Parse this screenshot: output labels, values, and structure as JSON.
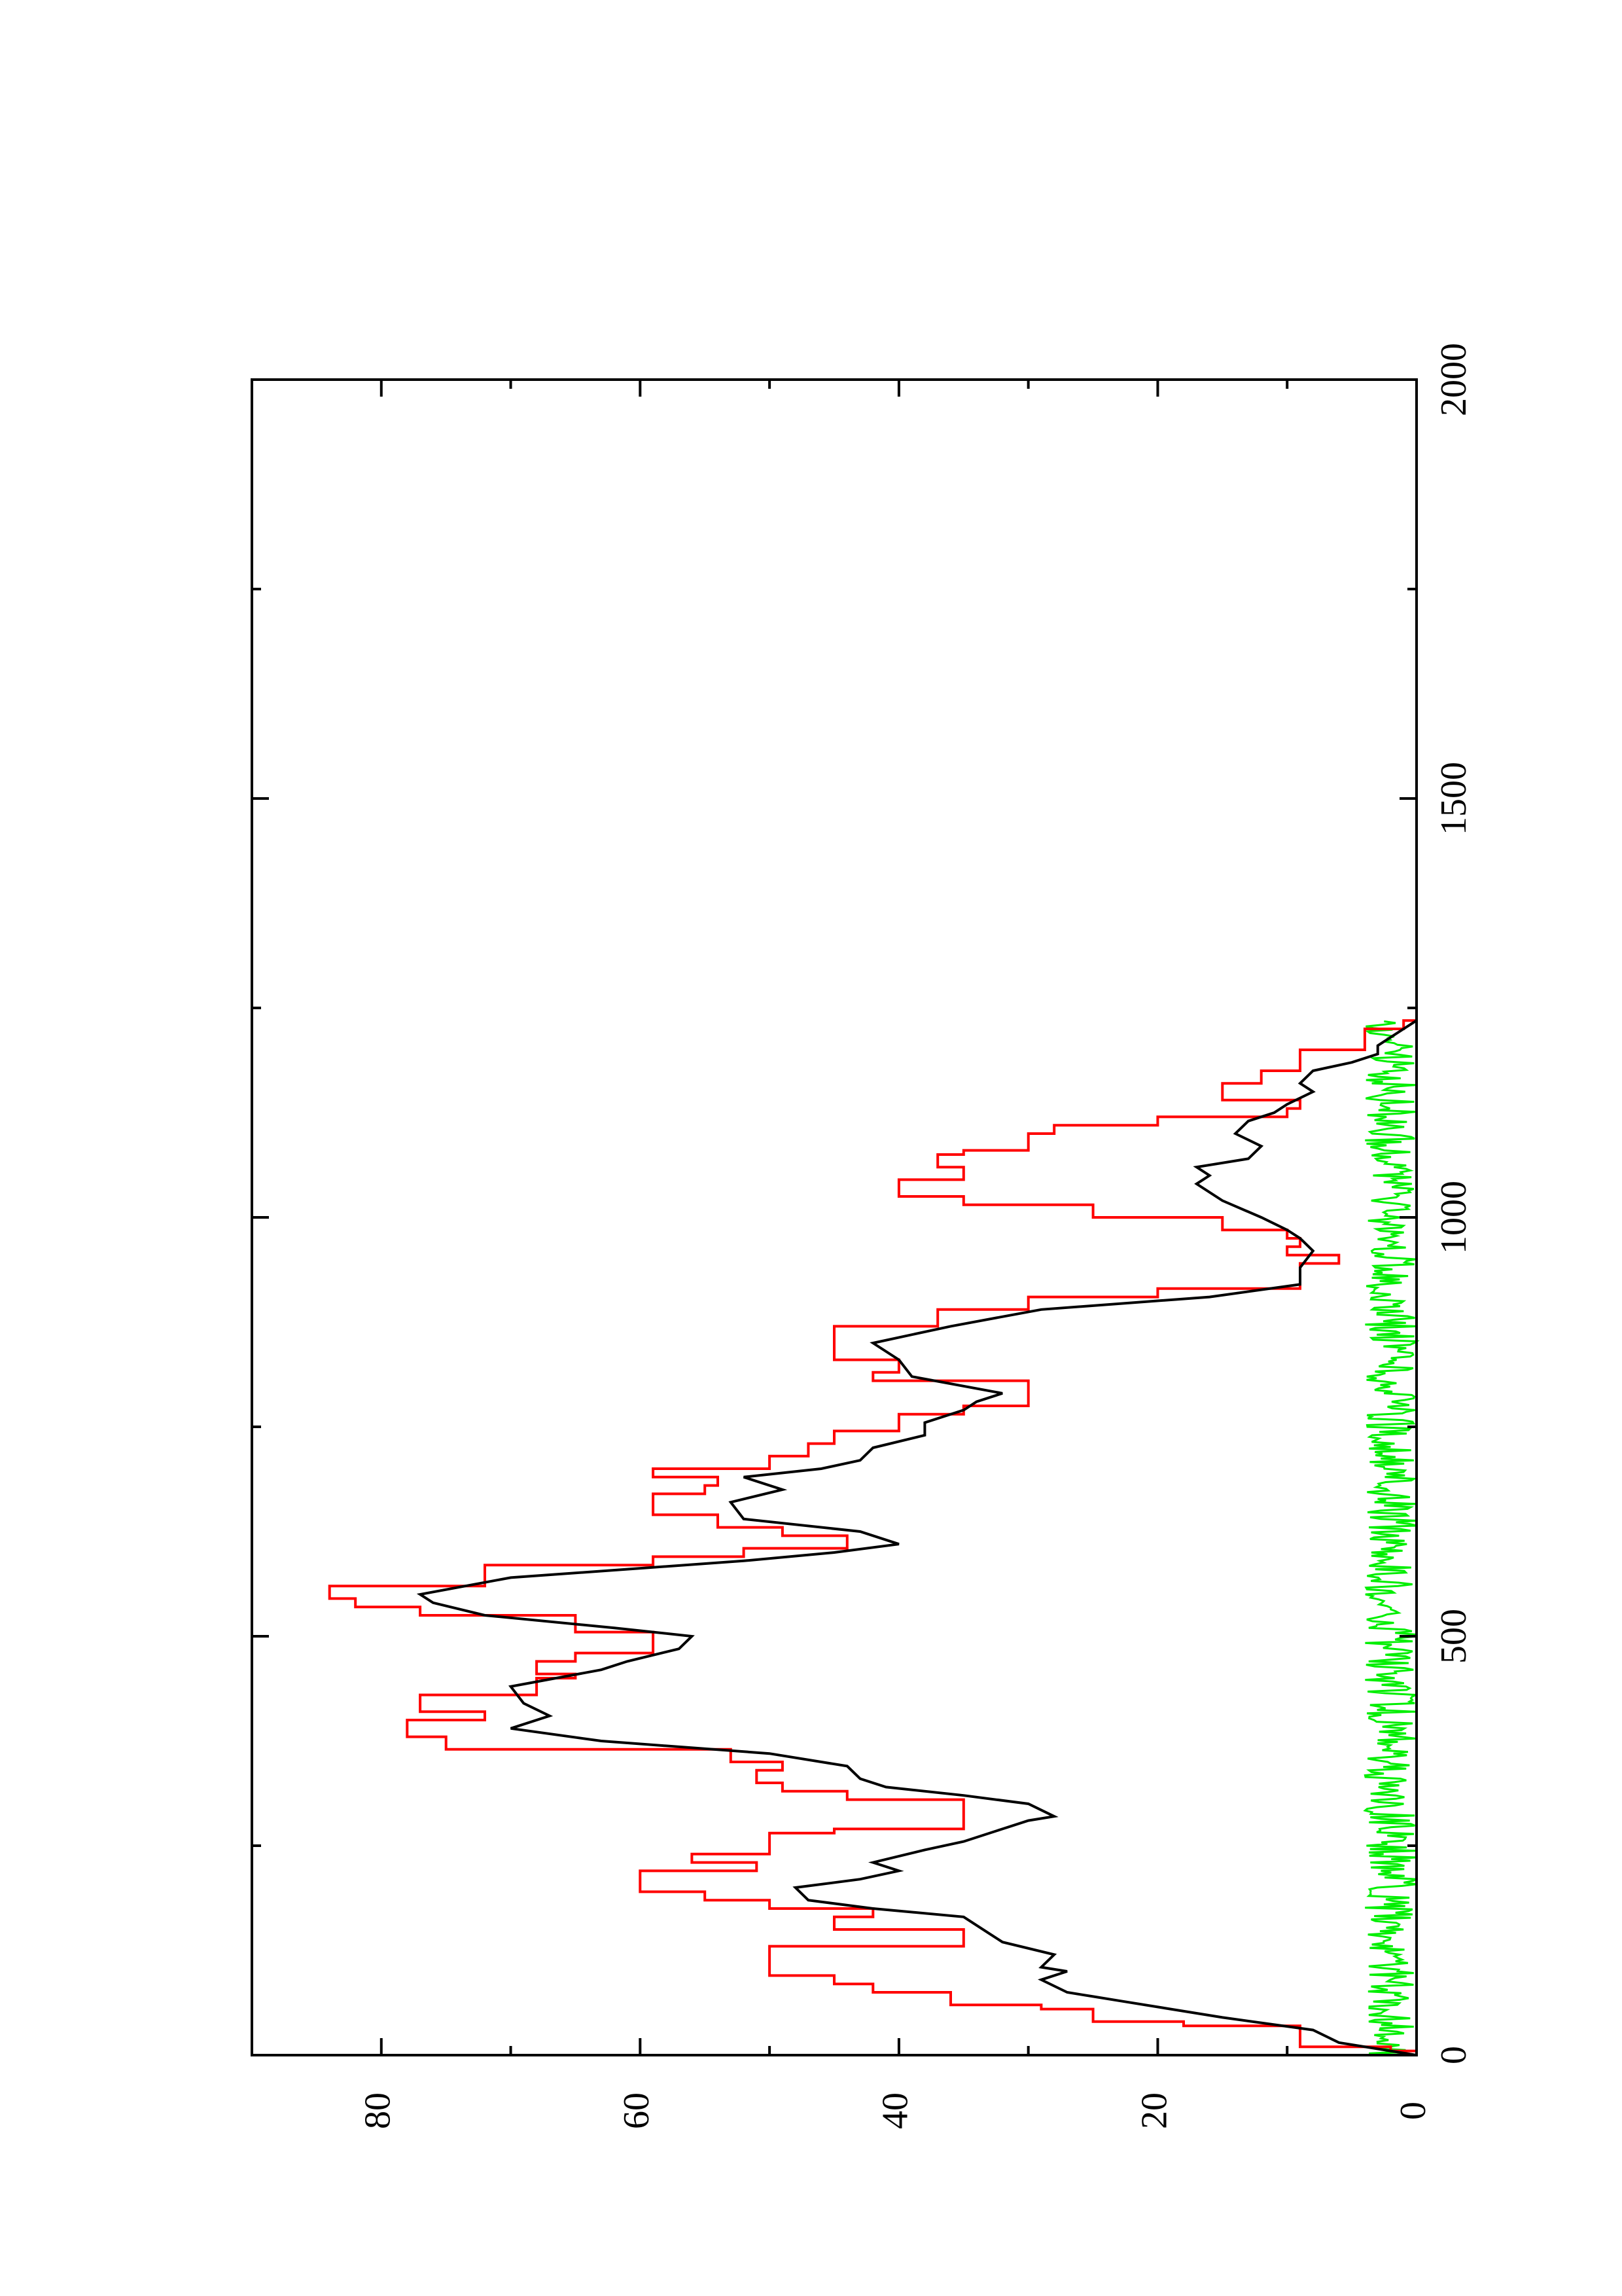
{
  "chart_data": {
    "type": "line",
    "orientation": "rotated 90 degrees counter-clockwise",
    "title": "",
    "xlabel": "",
    "ylabel": "",
    "xlim": [
      0,
      2000
    ],
    "ylim": [
      0,
      90
    ],
    "x_ticks": [
      0,
      500,
      1000,
      1500,
      2000
    ],
    "x_tick_labels": [
      "0",
      "500",
      "1000",
      "1500",
      "2000"
    ],
    "x_minor_ticks": [
      250,
      750,
      1250,
      1750
    ],
    "y_ticks": [
      0,
      20,
      40,
      60,
      80
    ],
    "y_tick_labels": [
      "0",
      "20",
      "40",
      "60",
      "80"
    ],
    "y_minor_ticks": [
      10,
      30,
      50,
      70
    ],
    "grid": false,
    "legend": "none",
    "series": [
      {
        "color": "#ff0000",
        "step": true,
        "points": [
          [
            0,
            0
          ],
          [
            5,
            2
          ],
          [
            10,
            9
          ],
          [
            30,
            9
          ],
          [
            35,
            18
          ],
          [
            40,
            25
          ],
          [
            55,
            29
          ],
          [
            60,
            36
          ],
          [
            75,
            42
          ],
          [
            85,
            45
          ],
          [
            95,
            50
          ],
          [
            130,
            35
          ],
          [
            150,
            45
          ],
          [
            165,
            42
          ],
          [
            175,
            50
          ],
          [
            185,
            55
          ],
          [
            195,
            60
          ],
          [
            220,
            51
          ],
          [
            230,
            56
          ],
          [
            240,
            50
          ],
          [
            265,
            45
          ],
          [
            270,
            35
          ],
          [
            290,
            35
          ],
          [
            305,
            44
          ],
          [
            315,
            49
          ],
          [
            325,
            51
          ],
          [
            340,
            49
          ],
          [
            350,
            53
          ],
          [
            365,
            75
          ],
          [
            380,
            78
          ],
          [
            400,
            72
          ],
          [
            410,
            77
          ],
          [
            430,
            68
          ],
          [
            450,
            65
          ],
          [
            455,
            68
          ],
          [
            470,
            65
          ],
          [
            480,
            59
          ],
          [
            500,
            59
          ],
          [
            505,
            65
          ],
          [
            525,
            77
          ],
          [
            535,
            82
          ],
          [
            545,
            84
          ],
          [
            560,
            72
          ],
          [
            585,
            59
          ],
          [
            595,
            52
          ],
          [
            605,
            44
          ],
          [
            620,
            49
          ],
          [
            630,
            54
          ],
          [
            645,
            59
          ],
          [
            660,
            59
          ],
          [
            670,
            55
          ],
          [
            680,
            54
          ],
          [
            690,
            59
          ],
          [
            700,
            50
          ],
          [
            715,
            47
          ],
          [
            730,
            45
          ],
          [
            745,
            40
          ],
          [
            765,
            35
          ],
          [
            775,
            30
          ],
          [
            790,
            30
          ],
          [
            805,
            42
          ],
          [
            815,
            40
          ],
          [
            820,
            40
          ],
          [
            830,
            45
          ],
          [
            860,
            45
          ],
          [
            870,
            37
          ],
          [
            890,
            30
          ],
          [
            905,
            20
          ],
          [
            915,
            9
          ],
          [
            930,
            9
          ],
          [
            945,
            6
          ],
          [
            955,
            10
          ],
          [
            965,
            9
          ],
          [
            975,
            10
          ],
          [
            985,
            15
          ],
          [
            1000,
            25
          ],
          [
            1015,
            35
          ],
          [
            1025,
            40
          ],
          [
            1045,
            35
          ],
          [
            1060,
            37
          ],
          [
            1075,
            35
          ],
          [
            1080,
            30
          ],
          [
            1100,
            28
          ],
          [
            1110,
            20
          ],
          [
            1120,
            10
          ],
          [
            1130,
            9
          ],
          [
            1140,
            15
          ],
          [
            1160,
            12
          ],
          [
            1175,
            9
          ],
          [
            1190,
            9
          ],
          [
            1200,
            4
          ],
          [
            1225,
            1
          ],
          [
            1235,
            0
          ]
        ]
      },
      {
        "color": "#000000",
        "step": false,
        "points": [
          [
            0,
            0
          ],
          [
            15,
            6
          ],
          [
            30,
            8
          ],
          [
            45,
            15
          ],
          [
            55,
            19
          ],
          [
            65,
            23
          ],
          [
            70,
            25
          ],
          [
            75,
            27
          ],
          [
            90,
            29
          ],
          [
            100,
            27
          ],
          [
            105,
            29
          ],
          [
            120,
            28
          ],
          [
            135,
            32
          ],
          [
            145,
            33
          ],
          [
            165,
            35
          ],
          [
            175,
            42
          ],
          [
            185,
            47
          ],
          [
            200,
            48
          ],
          [
            210,
            43
          ],
          [
            220,
            40
          ],
          [
            230,
            42
          ],
          [
            245,
            38
          ],
          [
            255,
            35
          ],
          [
            270,
            32
          ],
          [
            280,
            30
          ],
          [
            285,
            28
          ],
          [
            300,
            30
          ],
          [
            310,
            35
          ],
          [
            320,
            41
          ],
          [
            330,
            43
          ],
          [
            345,
            44
          ],
          [
            360,
            50
          ],
          [
            375,
            63
          ],
          [
            390,
            70
          ],
          [
            405,
            67
          ],
          [
            420,
            69
          ],
          [
            440,
            70
          ],
          [
            460,
            63
          ],
          [
            470,
            61
          ],
          [
            485,
            57
          ],
          [
            500,
            56
          ],
          [
            510,
            62
          ],
          [
            525,
            72
          ],
          [
            540,
            76
          ],
          [
            550,
            77
          ],
          [
            570,
            70
          ],
          [
            590,
            52
          ],
          [
            600,
            45
          ],
          [
            610,
            40
          ],
          [
            625,
            43
          ],
          [
            640,
            52
          ],
          [
            660,
            53
          ],
          [
            675,
            49
          ],
          [
            690,
            52
          ],
          [
            700,
            46
          ],
          [
            710,
            43
          ],
          [
            725,
            42
          ],
          [
            740,
            38
          ],
          [
            755,
            38
          ],
          [
            770,
            35
          ],
          [
            780,
            34
          ],
          [
            790,
            32
          ],
          [
            810,
            39
          ],
          [
            830,
            40
          ],
          [
            850,
            42
          ],
          [
            870,
            36
          ],
          [
            890,
            29
          ],
          [
            905,
            16
          ],
          [
            920,
            9
          ],
          [
            940,
            9
          ],
          [
            960,
            8
          ],
          [
            975,
            9
          ],
          [
            985,
            10
          ],
          [
            1000,
            12
          ],
          [
            1020,
            15
          ],
          [
            1040,
            17
          ],
          [
            1050,
            16
          ],
          [
            1060,
            17
          ],
          [
            1070,
            13
          ],
          [
            1085,
            12
          ],
          [
            1100,
            14
          ],
          [
            1115,
            13
          ],
          [
            1125,
            11
          ],
          [
            1135,
            10
          ],
          [
            1150,
            8
          ],
          [
            1160,
            9
          ],
          [
            1175,
            8
          ],
          [
            1185,
            5
          ],
          [
            1195,
            3
          ],
          [
            1205,
            3
          ],
          [
            1215,
            2
          ],
          [
            1225,
            1
          ],
          [
            1235,
            0
          ]
        ]
      },
      {
        "color": "#00ee00",
        "step": false,
        "noise": true,
        "x_range": [
          0,
          1235
        ],
        "y_range": [
          0,
          4
        ]
      }
    ]
  }
}
